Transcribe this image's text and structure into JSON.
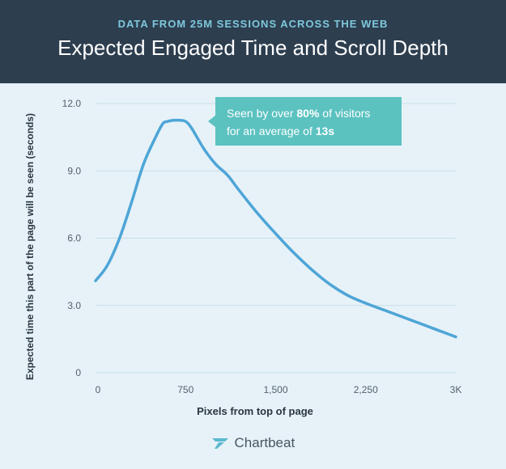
{
  "header": {
    "kicker": "DATA FROM 25M SESSIONS ACROSS THE WEB",
    "title": "Expected Engaged Time and Scroll Depth"
  },
  "callout": {
    "prefix": "Seen by over ",
    "pct": "80%",
    "mid": " of visitors",
    "line2_prefix": "for an average of ",
    "avg": "13s"
  },
  "brand": {
    "name": "Chartbeat"
  },
  "colors": {
    "header_bg": "#2d3e4f",
    "kicker": "#7ec8dd",
    "plot_bg": "#e6f2f8",
    "line": "#4ea5d7",
    "callout_bg": "#5bc2c0"
  },
  "chart_data": {
    "type": "line",
    "title": "Expected Engaged Time and Scroll Depth",
    "xlabel": "Pixels from top of page",
    "ylabel": "Expected time this part of the page will be seen (seconds)",
    "xlim": [
      0,
      3000
    ],
    "ylim": [
      0,
      12
    ],
    "xticks": [
      0,
      750,
      1500,
      2250,
      3000
    ],
    "xtick_labels": [
      "0",
      "750",
      "1,500",
      "2,250",
      "3K"
    ],
    "yticks": [
      0,
      3,
      6,
      9,
      12
    ],
    "ytick_labels": [
      "0",
      "3.0",
      "6.0",
      "9.0",
      "12.0"
    ],
    "grid": true,
    "x": [
      0,
      100,
      200,
      300,
      400,
      500,
      560,
      600,
      650,
      700,
      750,
      800,
      900,
      1000,
      1100,
      1200,
      1350,
      1500,
      1650,
      1800,
      1950,
      2100,
      2250,
      2400,
      2550,
      2700,
      2850,
      3000
    ],
    "y": [
      4.1,
      4.8,
      6.0,
      7.6,
      9.3,
      10.5,
      11.1,
      11.2,
      11.25,
      11.25,
      11.2,
      10.9,
      10.0,
      9.3,
      8.8,
      8.1,
      7.1,
      6.2,
      5.35,
      4.6,
      3.95,
      3.45,
      3.1,
      2.8,
      2.5,
      2.2,
      1.9,
      1.6
    ]
  }
}
